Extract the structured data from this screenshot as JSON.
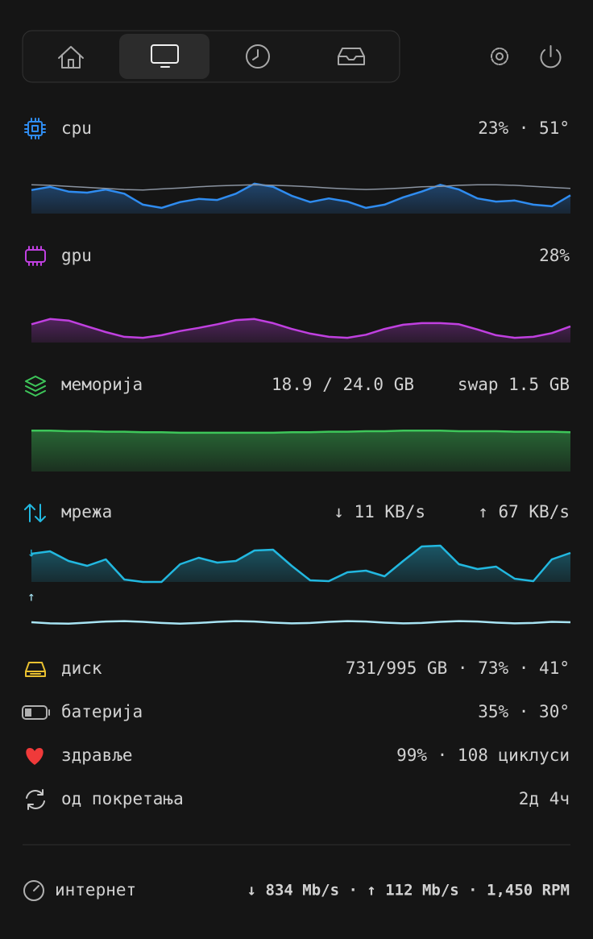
{
  "cpu": {
    "label": "cpu",
    "value": "23% · 51°",
    "graph": {
      "color": "#2f8cf0",
      "ylim": [
        0,
        100
      ],
      "values": [
        45,
        51,
        42,
        40,
        46,
        38,
        17,
        11,
        22,
        28,
        26,
        38,
        57,
        51,
        34,
        22,
        29,
        23,
        11,
        17,
        31,
        42,
        55,
        46,
        29,
        23,
        25,
        17,
        14,
        35
      ],
      "avg_color": "#8a93a0",
      "avg_values": [
        55,
        54,
        52,
        50,
        48,
        46,
        45,
        47,
        49,
        51,
        53,
        54,
        55,
        54,
        53,
        51,
        49,
        47,
        46,
        47,
        49,
        51,
        52,
        54,
        55,
        55,
        54,
        52,
        50,
        48
      ]
    }
  },
  "gpu": {
    "label": "gpu",
    "value": "28%",
    "graph": {
      "color": "#c040e0",
      "ylim": [
        0,
        100
      ],
      "values": [
        35,
        45,
        42,
        31,
        20,
        11,
        9,
        14,
        22,
        28,
        35,
        43,
        45,
        37,
        26,
        17,
        11,
        9,
        15,
        26,
        34,
        37,
        37,
        35,
        25,
        14,
        9,
        11,
        18,
        31
      ]
    }
  },
  "memory": {
    "label": "меморија",
    "value": "18.9 / 24.0 GB",
    "swap": "swap 1.5 GB",
    "graph": {
      "color": "#3ec65a",
      "ylim": [
        0,
        100
      ],
      "values": [
        78,
        78,
        77,
        77,
        76,
        76,
        75,
        75,
        74,
        74,
        74,
        74,
        74,
        74,
        75,
        75,
        76,
        76,
        77,
        77,
        78,
        78,
        78,
        77,
        77,
        77,
        76,
        76,
        76,
        75
      ]
    }
  },
  "network": {
    "label": "мрежа",
    "down": "↓ 11 KB/s",
    "up": "↑ 67 KB/s",
    "down_graph": {
      "marker": "↓",
      "color": "#22b8e0",
      "ylim": [
        0,
        100
      ],
      "values": [
        70,
        76,
        52,
        40,
        56,
        6,
        0,
        0,
        44,
        60,
        48,
        52,
        78,
        80,
        40,
        4,
        2,
        24,
        28,
        14,
        52,
        88,
        90,
        44,
        32,
        38,
        8,
        2,
        56,
        72
      ]
    },
    "up_graph": {
      "marker": "↑",
      "color": "#a8e4f4",
      "ylim": [
        0,
        100
      ],
      "values": [
        40,
        37,
        36,
        39,
        42,
        43,
        41,
        38,
        36,
        38,
        41,
        43,
        42,
        39,
        37,
        38,
        41,
        43,
        42,
        39,
        37,
        38,
        41,
        43,
        42,
        39,
        37,
        38,
        41,
        40
      ]
    }
  },
  "rows": [
    {
      "label": "диск",
      "value": "731/995 GB · 73% · 41°"
    },
    {
      "label": "батерија",
      "value": "35% · 30°"
    },
    {
      "label": "здравље",
      "value": "99% · 108 циклуси"
    },
    {
      "label": "од покретања",
      "value": "2д 4ч"
    }
  ],
  "footer": {
    "label": "интернет",
    "value": "↓ 834 Mb/s · ↑ 112 Mb/s · 1,450 RPM"
  }
}
